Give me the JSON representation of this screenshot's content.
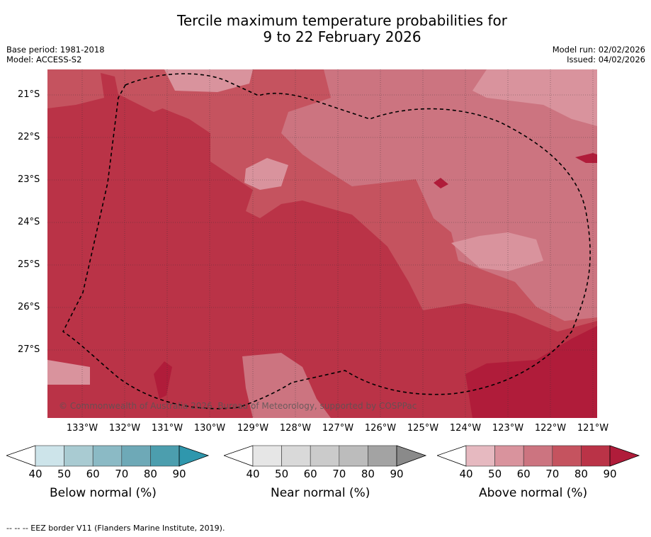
{
  "title": {
    "line1": "Tercile maximum temperature probabilities for",
    "line2": "9 to 22 February 2026"
  },
  "meta": {
    "base_period": "Base period: 1981-2018",
    "model": "Model: ACCESS-S2",
    "model_run": "Model run: 02/02/2026",
    "issued": "Issued: 04/02/2026"
  },
  "map": {
    "y_labels": [
      "21°S",
      "22°S",
      "23°S",
      "24°S",
      "25°S",
      "26°S",
      "27°S"
    ],
    "x_labels": [
      "133°W",
      "132°W",
      "131°W",
      "130°W",
      "129°W",
      "128°W",
      "127°W",
      "126°W",
      "125°W",
      "124°W",
      "123°W",
      "122°W",
      "121°W"
    ],
    "copyright": "© Commonwealth of Australia 2026, Bureau of Meteorology, supported by COSPPac"
  },
  "legends": [
    {
      "title": "Below normal (%)",
      "ticks": [
        "40",
        "50",
        "60",
        "70",
        "80",
        "90"
      ],
      "colors": [
        "#cde4ea",
        "#a9cbd2",
        "#8bbac5",
        "#6ea9b7",
        "#4c9eae",
        "#2f97ad"
      ]
    },
    {
      "title": "Near normal (%)",
      "ticks": [
        "40",
        "50",
        "60",
        "70",
        "80",
        "90"
      ],
      "colors": [
        "#e6e6e6",
        "#d9d9d9",
        "#cbcbcb",
        "#bcbcbc",
        "#a3a3a3",
        "#8a8a8a"
      ]
    },
    {
      "title": "Above normal (%)",
      "ticks": [
        "40",
        "50",
        "60",
        "70",
        "80",
        "90"
      ],
      "colors": [
        "#e6b9c0",
        "#d9939d",
        "#cc7480",
        "#c5535f",
        "#ba3347",
        "#b01c3a"
      ]
    }
  ],
  "footnote": "--  --  -- EEZ border V11 (Flanders Marine Institute, 2019).",
  "colors": {
    "class_50_60": "#d9939d",
    "class_60_70": "#cc7480",
    "class_70_80": "#c5535f",
    "class_80_90": "#ba3347",
    "class_90": "#b01c3a"
  }
}
